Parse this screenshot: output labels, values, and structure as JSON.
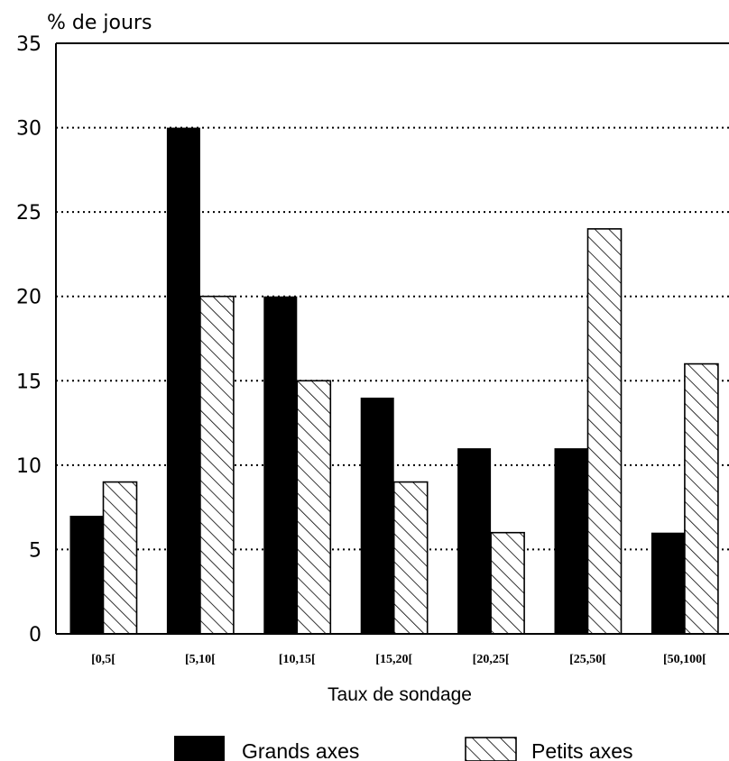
{
  "chart_data": {
    "type": "bar",
    "ylabel": "% de jours",
    "xlabel": "Taux de sondage",
    "categories": [
      "[0,5[",
      "[5,10[",
      "[10,15[",
      "[15,20[",
      "[20,25[",
      "[25,50[",
      "[50,100["
    ],
    "series": [
      {
        "name": "Grands axes",
        "values": [
          7,
          30,
          20,
          14,
          11,
          11,
          6
        ],
        "fill": "solid",
        "color": "#000000"
      },
      {
        "name": "Petits axes",
        "values": [
          9,
          20,
          15,
          9,
          6,
          24,
          16
        ],
        "fill": "hatched",
        "color": "#000000"
      }
    ],
    "ylim": [
      0,
      35
    ],
    "yticks": [
      0,
      5,
      10,
      15,
      20,
      25,
      30,
      35
    ],
    "grid": "horizontal dotted",
    "legend_position": "bottom"
  }
}
